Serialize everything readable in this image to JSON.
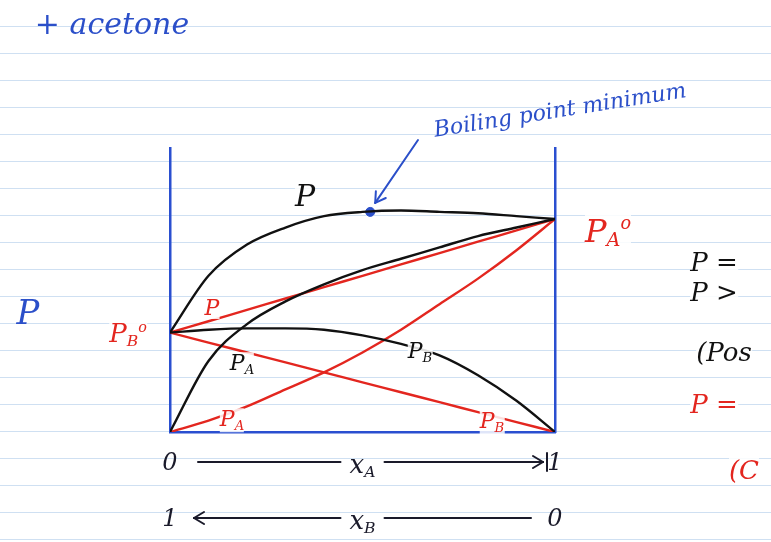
{
  "chart_data": {
    "type": "line",
    "title": "+ acetone",
    "x": [
      0,
      0.1,
      0.2,
      0.3,
      0.4,
      0.5,
      0.6,
      0.7,
      0.8,
      0.9,
      1
    ],
    "series": [
      {
        "name": "P",
        "color": "#111111",
        "values": [
          35,
          55,
          66,
          72,
          76,
          77.5,
          78,
          77.5,
          77,
          76,
          75
        ]
      },
      {
        "name": "PA",
        "color": "#111111",
        "values": [
          0,
          25,
          38,
          46,
          52,
          57,
          61,
          65,
          69,
          72,
          75
        ]
      },
      {
        "name": "PB",
        "color": "#111111",
        "values": [
          35,
          36,
          36.5,
          36.5,
          36,
          34,
          31,
          27,
          20,
          11,
          0
        ]
      },
      {
        "name": "P",
        "color": "#e3261f",
        "values": [
          35,
          39,
          43,
          47,
          51,
          55,
          59,
          63,
          67,
          71,
          75
        ]
      },
      {
        "name": "PA",
        "color": "#e3261f",
        "values": [
          0,
          4,
          9,
          15,
          21,
          28,
          36,
          45,
          54,
          64,
          75
        ]
      },
      {
        "name": "PB",
        "color": "#e3261f",
        "values": [
          35,
          31.5,
          28,
          24.5,
          21,
          17.5,
          14,
          10.5,
          7,
          3.5,
          0
        ]
      }
    ],
    "xlim": [
      0,
      1
    ],
    "xticks": [
      0,
      1
    ],
    "x2lim": [
      0,
      1
    ],
    "x2ticks": [
      0,
      1
    ],
    "ylim": [
      0,
      100
    ],
    "x_label": {
      "text": "x",
      "sub": "A"
    },
    "x2_label": {
      "text": "x",
      "sub": "B"
    },
    "y_label": "P",
    "grid": false,
    "tick_labels": "x",
    "annotations": [
      {
        "text": "Boiling point minimum",
        "color": "#2b4fc9",
        "point": [
          0.52,
          77.5
        ]
      },
      {
        "text": "P",
        "color": "#111111"
      },
      {
        "text": "P",
        "sub": "A",
        "sup": "o",
        "color": "#e3261f"
      },
      {
        "text": "P",
        "sub": "B",
        "sup": "o",
        "color": "#e3261f"
      },
      {
        "text": "P",
        "color": "#e3261f"
      },
      {
        "text": "P",
        "sub": "A",
        "color": "#111111"
      },
      {
        "text": "P",
        "sub": "B",
        "color": "#111111"
      },
      {
        "text": "P",
        "sub": "A",
        "color": "#e3261f"
      },
      {
        "text": "P",
        "sub": "B",
        "color": "#e3261f"
      },
      {
        "text": "P =",
        "color": "#111111"
      },
      {
        "text": "P >",
        "color": "#111111"
      },
      {
        "text": "(Pos",
        "color": "#111111"
      },
      {
        "text": "P =",
        "color": "#e3261f"
      },
      {
        "text": "(C",
        "color": "#e3261f"
      }
    ]
  }
}
